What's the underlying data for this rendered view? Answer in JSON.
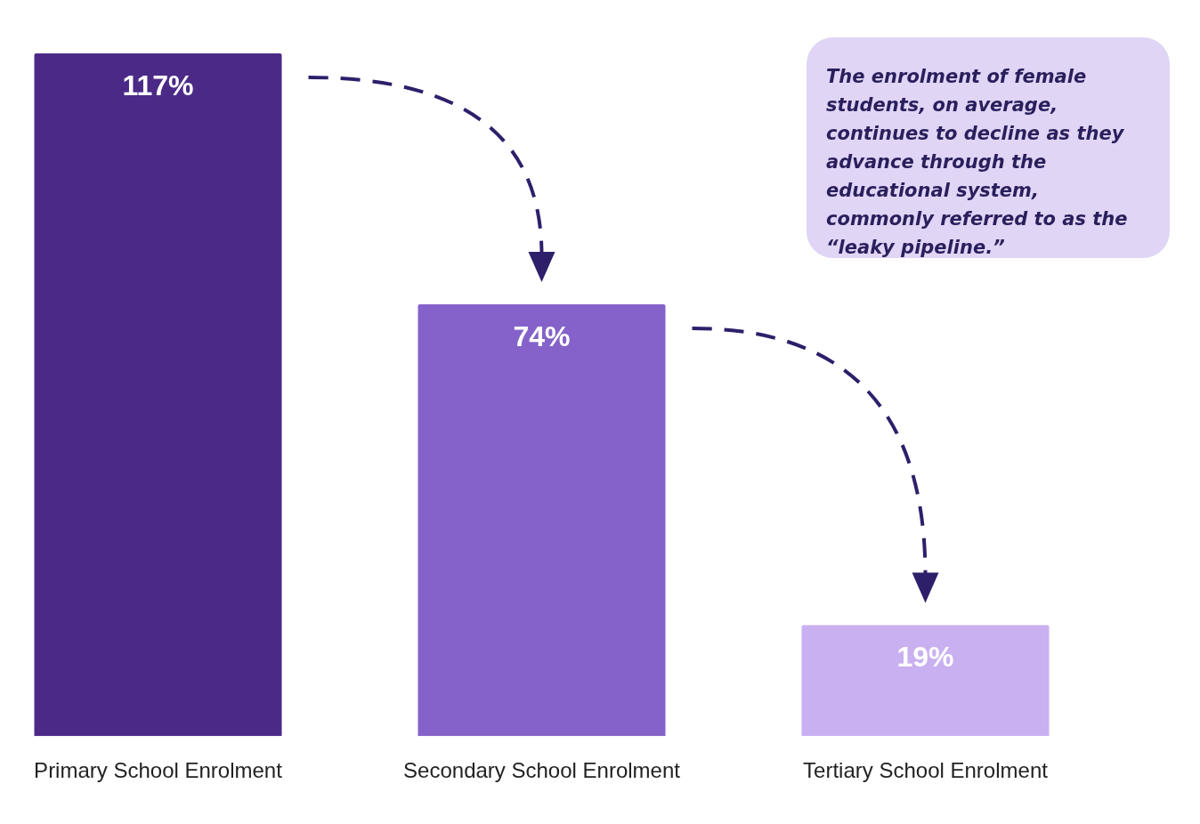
{
  "chart_data": {
    "type": "bar",
    "categories": [
      "Primary School Enrolment",
      "Secondary School Enrolment",
      "Tertiary School Enrolment"
    ],
    "values": [
      117,
      74,
      19
    ],
    "value_labels": [
      "117%",
      "74%",
      "19%"
    ],
    "colors": [
      "#4b2a87",
      "#8462c9",
      "#c9b0f0"
    ],
    "ylim": [
      0,
      117
    ],
    "grid": false,
    "data_labels": true,
    "tick_labels": "x",
    "annotation": "The enrolment of female students, on average, continues to decline as they advance through the educational system, commonly referred to as the “leaky pipeline.”"
  }
}
